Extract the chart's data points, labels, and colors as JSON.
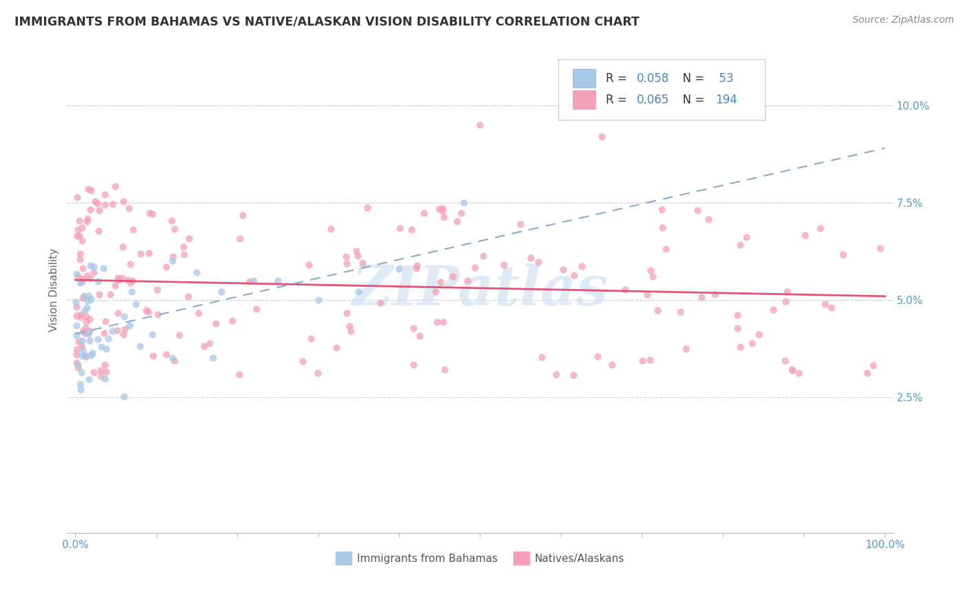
{
  "title": "IMMIGRANTS FROM BAHAMAS VS NATIVE/ALASKAN VISION DISABILITY CORRELATION CHART",
  "source": "Source: ZipAtlas.com",
  "ylabel": "Vision Disability",
  "xlim": [
    -0.01,
    1.01
  ],
  "ylim": [
    -0.01,
    0.115
  ],
  "x_ticks": [
    0.0,
    0.1,
    0.2,
    0.3,
    0.4,
    0.5,
    0.6,
    0.7,
    0.8,
    0.9,
    1.0
  ],
  "x_tick_labels": [
    "0.0%",
    "",
    "",
    "",
    "",
    "",
    "",
    "",
    "",
    "",
    "100.0%"
  ],
  "y_ticks_right": [
    0.0,
    0.025,
    0.05,
    0.075,
    0.1
  ],
  "y_tick_labels_right": [
    "",
    "2.5%",
    "5.0%",
    "7.5%",
    "10.0%"
  ],
  "blue_color": "#a8c8e8",
  "pink_color": "#f4a0b8",
  "blue_line_color": "#88aacc",
  "pink_line_color": "#e05575",
  "text_color_blue": "#4488cc",
  "text_color_dark": "#333333",
  "watermark_color": "#ccddf0",
  "grid_color": "#cccccc",
  "axis_color": "#bbbbbb",
  "tick_label_color": "#5599cc",
  "ylabel_color": "#666666",
  "source_color": "#888888",
  "blue_r": "0.058",
  "blue_n": "53",
  "pink_r": "0.065",
  "pink_n": "194",
  "scatter_size": 55,
  "blue_alpha": 0.75,
  "pink_alpha": 0.75
}
